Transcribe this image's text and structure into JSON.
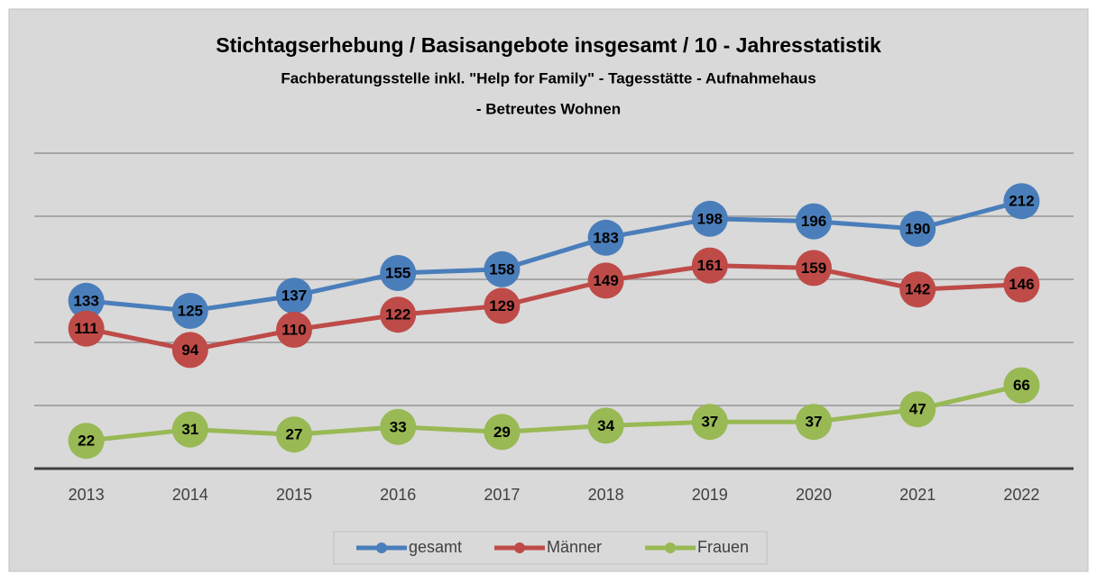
{
  "chart_data": {
    "type": "line",
    "title": "Stichtagserhebung / Basisangebote insgesamt / 10 - Jahresstatistik",
    "subtitle": [
      "Fachberatungsstelle inkl. \"Help for Family\" - Tagesstätte - Aufnahmehaus",
      "- Betreutes Wohnen"
    ],
    "categories": [
      "2013",
      "2014",
      "2015",
      "2016",
      "2017",
      "2018",
      "2019",
      "2020",
      "2021",
      "2022"
    ],
    "series": [
      {
        "name": "gesamt",
        "color": "#4a7ebb",
        "values": [
          133,
          125,
          137,
          155,
          158,
          183,
          198,
          196,
          190,
          212
        ]
      },
      {
        "name": "Männer",
        "color": "#be4b48",
        "values": [
          111,
          94,
          110,
          122,
          129,
          149,
          161,
          159,
          142,
          146
        ]
      },
      {
        "name": "Frauen",
        "color": "#98b954",
        "values": [
          22,
          31,
          27,
          33,
          29,
          34,
          37,
          37,
          47,
          66
        ]
      }
    ],
    "ylim": [
      0,
      250
    ],
    "yticks": [
      0,
      50,
      100,
      150,
      200,
      250
    ],
    "grid": true,
    "legend": "bottom"
  }
}
